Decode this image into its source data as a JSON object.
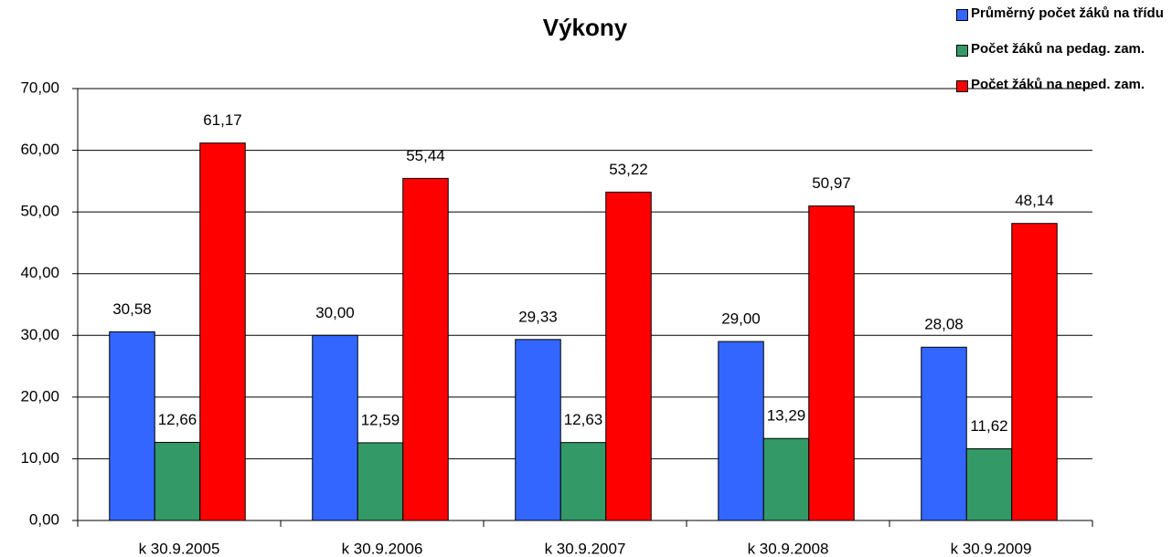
{
  "chart_data": {
    "type": "bar",
    "title": "Výkony",
    "categories": [
      "k 30.9.2005",
      "k 30.9.2006",
      "k 30.9.2007",
      "k 30.9.2008",
      "k 30.9.2009"
    ],
    "series": [
      {
        "name": "Průměrný počet žáků na třídu",
        "color": "#3366ff",
        "values": [
          30.58,
          30.0,
          29.33,
          29.0,
          28.08
        ],
        "value_labels": [
          "30,58",
          "30,00",
          "29,33",
          "29,00",
          "28,08"
        ]
      },
      {
        "name": "Počet žáků na pedag. zam.",
        "color": "#339966",
        "values": [
          12.66,
          12.59,
          12.63,
          13.29,
          11.62
        ],
        "value_labels": [
          "12,66",
          "12,59",
          "12,63",
          "13,29",
          "11,62"
        ]
      },
      {
        "name": "Počet žáků na neped. zam.",
        "color": "#ff0000",
        "values": [
          61.17,
          55.44,
          53.22,
          50.97,
          48.14
        ],
        "value_labels": [
          "61,17",
          "55,44",
          "53,22",
          "50,97",
          "48,14"
        ]
      }
    ],
    "ylim": [
      0,
      70
    ],
    "yticks": [
      {
        "value": 0,
        "label": "0,00"
      },
      {
        "value": 10,
        "label": "10,00"
      },
      {
        "value": 20,
        "label": "20,00"
      },
      {
        "value": 30,
        "label": "30,00"
      },
      {
        "value": 40,
        "label": "40,00"
      },
      {
        "value": 50,
        "label": "50,00"
      },
      {
        "value": 60,
        "label": "60,00"
      },
      {
        "value": 70,
        "label": "70,00"
      }
    ],
    "grid": true,
    "legend": "top-right"
  }
}
